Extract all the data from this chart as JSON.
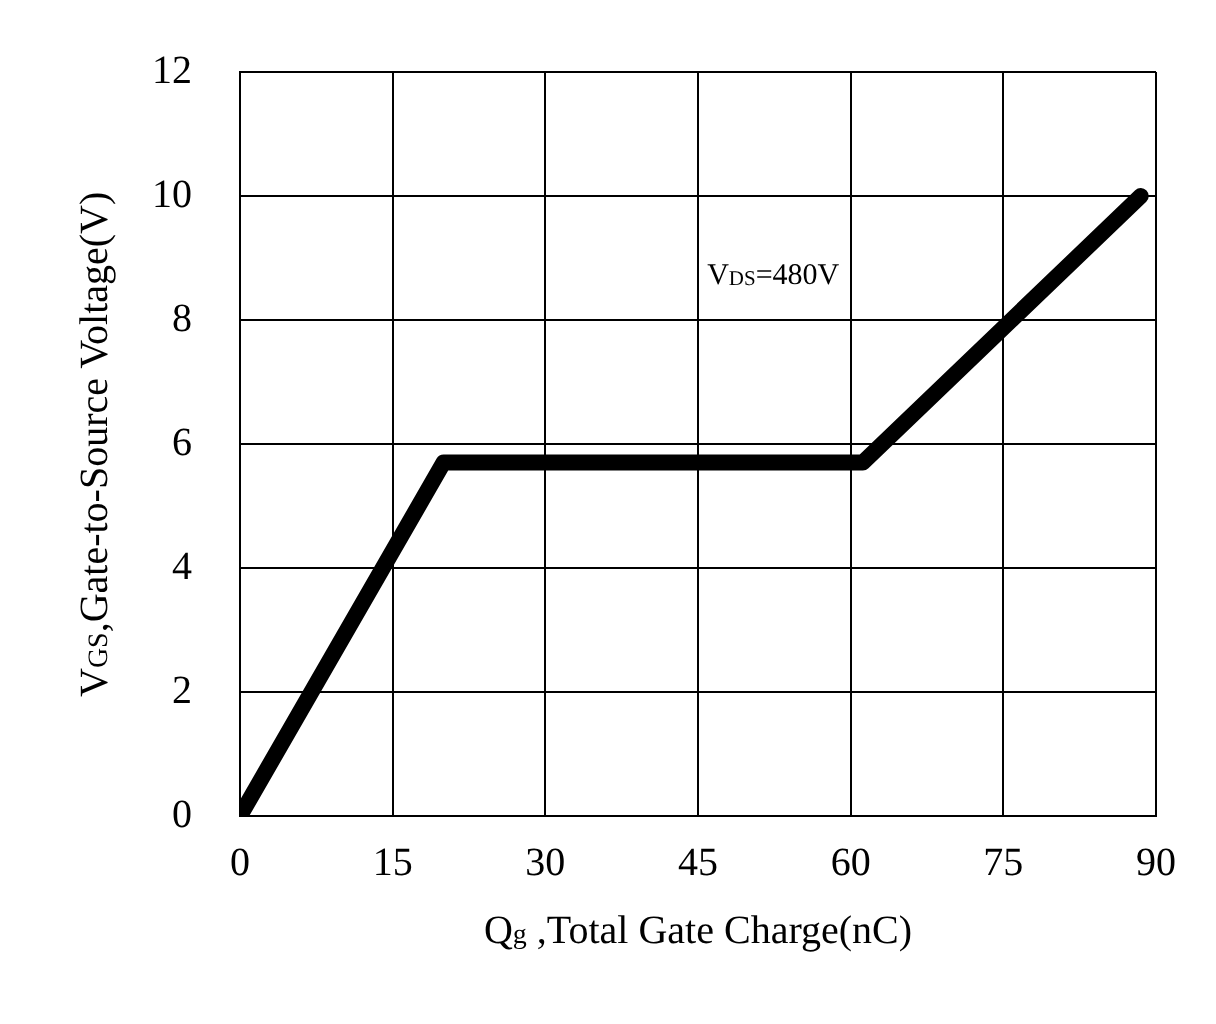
{
  "chart_data": {
    "type": "line",
    "xlabel": "Q$_{g}$ ,Total Gate Charge(nC)",
    "ylabel": "V$_{GS}$,Gate-to-Source Voltage(V)",
    "annotations": [
      "V$_{DS}$=480V"
    ],
    "x": [
      0,
      20,
      61.2,
      88.5
    ],
    "series": [
      {
        "color": "#000000",
        "values": [
          0,
          5.7,
          5.7,
          10
        ]
      }
    ],
    "xlim": [
      0,
      90
    ],
    "xticks": [
      0,
      15,
      30,
      45,
      60,
      75,
      90
    ],
    "ylim": [
      0,
      12
    ],
    "yticks": [
      0,
      2,
      4,
      6,
      8,
      10,
      12
    ],
    "grid": true,
    "legend": false,
    "marker": "none",
    "line_style": "solid"
  }
}
